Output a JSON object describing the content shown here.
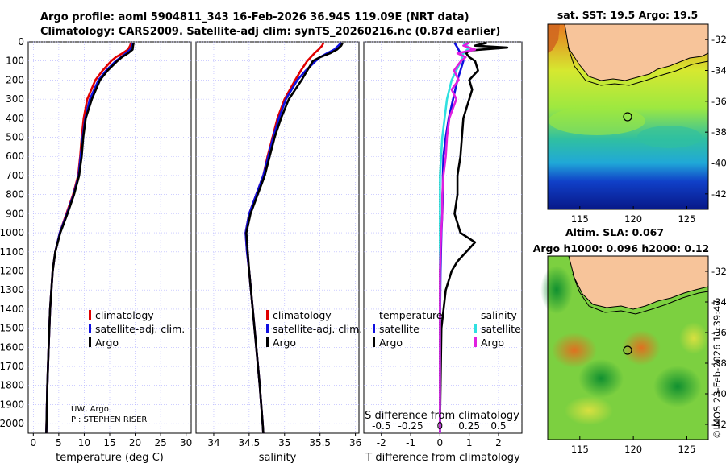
{
  "header": {
    "line1": "Argo profile: aoml 5904811_343 16-Feb-2026 36.94S 119.09E (NRT data)",
    "line2": "Climatology: CARS2009. Satellite-adj clim: synTS_20260216.nc (0.87d earlier)"
  },
  "colors": {
    "climatology": "#e00000",
    "satellite_adj": "#1010e0",
    "argo": "#000000",
    "sat_salinity": "#30e0e0",
    "argo_salinity": "#e020e0",
    "land": "#f7c49a",
    "grid": "#b0b0ff"
  },
  "depth_axis": {
    "ticks": [
      0,
      100,
      200,
      300,
      400,
      500,
      600,
      700,
      800,
      900,
      1000,
      1100,
      1200,
      1300,
      1400,
      1500,
      1600,
      1700,
      1800,
      1900,
      2000
    ],
    "range": [
      0,
      2050
    ]
  },
  "chart_data": [
    {
      "type": "line",
      "name": "temperature-profile",
      "xlabel": "temperature (deg C)",
      "ylabel": "depth",
      "xlim": [
        -1,
        31
      ],
      "ylim": [
        2050,
        0
      ],
      "xticks": [
        0,
        5,
        10,
        15,
        20,
        25,
        30
      ],
      "legend": [
        "climatology",
        "satellite-adj. clim.",
        "Argo"
      ],
      "annotation": [
        "UW, Argo",
        "PI: STEPHEN RISER"
      ],
      "series": [
        {
          "name": "climatology",
          "depth": [
            5,
            20,
            40,
            60,
            80,
            100,
            150,
            200,
            300,
            400,
            500,
            600,
            700,
            800,
            900,
            1000,
            1100,
            1200,
            1400,
            1600,
            1800,
            2000,
            2050
          ],
          "values": [
            19.2,
            19.0,
            18.6,
            17.5,
            16.2,
            15.3,
            13.6,
            12.2,
            10.6,
            9.9,
            9.5,
            9.2,
            8.8,
            7.8,
            6.5,
            5.2,
            4.3,
            3.8,
            3.3,
            3.0,
            2.75,
            2.6,
            2.55
          ]
        },
        {
          "name": "satellite-adj. clim.",
          "depth": [
            5,
            20,
            40,
            60,
            80,
            100,
            150,
            200,
            300,
            400,
            500,
            600,
            700,
            800,
            900,
            1000,
            1100,
            1200,
            1400,
            1600,
            1800,
            2000,
            2050
          ],
          "values": [
            19.6,
            19.4,
            19.0,
            18.2,
            17.2,
            16.2,
            14.3,
            12.8,
            11.1,
            10.2,
            9.7,
            9.3,
            8.9,
            7.9,
            6.6,
            5.2,
            4.3,
            3.8,
            3.3,
            3.0,
            2.75,
            2.6,
            2.55
          ]
        },
        {
          "name": "Argo",
          "depth": [
            5,
            20,
            40,
            60,
            80,
            100,
            150,
            200,
            300,
            400,
            500,
            600,
            700,
            800,
            900,
            1000,
            1100,
            1200,
            1400,
            1600,
            1800,
            2000,
            2050
          ],
          "values": [
            19.7,
            19.6,
            19.5,
            18.6,
            17.4,
            16.5,
            14.6,
            13.1,
            11.5,
            10.3,
            9.8,
            9.5,
            9.0,
            8.0,
            6.7,
            5.3,
            4.3,
            3.8,
            3.3,
            3.0,
            2.75,
            2.6,
            2.55
          ]
        }
      ]
    },
    {
      "type": "line",
      "name": "salinity-profile",
      "xlabel": "salinity",
      "ylabel": "depth",
      "xlim": [
        33.75,
        36.05
      ],
      "ylim": [
        2050,
        0
      ],
      "xticks": [
        34,
        34.5,
        35,
        35.5,
        36
      ],
      "legend": [
        "climatology",
        "satellite-adj. clim.",
        "Argo"
      ],
      "series": [
        {
          "name": "climatology",
          "depth": [
            5,
            20,
            40,
            60,
            80,
            100,
            150,
            200,
            300,
            400,
            500,
            600,
            700,
            800,
            900,
            1000,
            1100,
            1200,
            1400,
            1600,
            1800,
            2000,
            2050
          ],
          "values": [
            35.55,
            35.53,
            35.48,
            35.42,
            35.37,
            35.32,
            35.23,
            35.15,
            35.0,
            34.9,
            34.83,
            34.76,
            34.7,
            34.6,
            34.5,
            34.45,
            34.47,
            34.5,
            34.55,
            34.6,
            34.65,
            34.69,
            34.7
          ]
        },
        {
          "name": "satellite-adj. clim.",
          "depth": [
            5,
            20,
            40,
            60,
            80,
            100,
            150,
            200,
            300,
            400,
            500,
            600,
            700,
            800,
            900,
            1000,
            1100,
            1200,
            1400,
            1600,
            1800,
            2000,
            2050
          ],
          "values": [
            35.8,
            35.76,
            35.7,
            35.6,
            35.5,
            35.44,
            35.3,
            35.18,
            35.02,
            34.92,
            34.84,
            34.77,
            34.7,
            34.6,
            34.5,
            34.45,
            34.47,
            34.5,
            34.55,
            34.6,
            34.65,
            34.69,
            34.7
          ]
        },
        {
          "name": "Argo",
          "depth": [
            5,
            20,
            40,
            60,
            80,
            100,
            150,
            200,
            300,
            400,
            500,
            600,
            700,
            800,
            900,
            1000,
            1100,
            1200,
            1400,
            1600,
            1800,
            2000,
            2050
          ],
          "values": [
            35.82,
            35.8,
            35.74,
            35.64,
            35.5,
            35.4,
            35.32,
            35.24,
            35.06,
            34.95,
            34.86,
            34.79,
            34.72,
            34.62,
            34.52,
            34.46,
            34.48,
            34.5,
            34.55,
            34.6,
            34.65,
            34.69,
            34.7
          ]
        }
      ]
    },
    {
      "type": "line",
      "name": "difference-profile",
      "xlabel": "T difference from climatology",
      "x2label": "S difference from climatology",
      "ylabel": "depth",
      "xlim": [
        -2.6,
        2.8
      ],
      "ylim": [
        2050,
        0
      ],
      "xticks": [
        -2,
        -1,
        0,
        1,
        2
      ],
      "x2ticks": [
        "-0.5",
        "-0.25",
        "0",
        "0.25",
        "0.5"
      ],
      "legend_left_title": "temperature",
      "legend_right_title": "salinity",
      "legend_left": [
        "satellite",
        "Argo"
      ],
      "legend_right": [
        "satellite",
        "Argo"
      ],
      "series": [
        {
          "name": "T satellite",
          "depth": [
            5,
            30,
            60,
            100,
            150,
            200,
            300,
            400,
            500,
            600,
            700,
            800,
            900,
            1000,
            1200,
            1500,
            2000,
            2050
          ],
          "values": [
            0.5,
            0.6,
            0.7,
            0.8,
            0.7,
            0.6,
            0.45,
            0.3,
            0.2,
            0.12,
            0.1,
            0.1,
            0.08,
            0.05,
            0.02,
            0.0,
            0.0,
            0.0
          ]
        },
        {
          "name": "T Argo",
          "depth": [
            5,
            20,
            30,
            45,
            60,
            80,
            100,
            150,
            200,
            250,
            300,
            350,
            400,
            500,
            600,
            700,
            800,
            900,
            1000,
            1050,
            1100,
            1150,
            1200,
            1300,
            1500,
            2000,
            2050
          ],
          "values": [
            1.6,
            1.2,
            2.3,
            1.0,
            0.9,
            1.0,
            1.2,
            1.3,
            1.0,
            1.1,
            1.0,
            0.9,
            0.8,
            0.75,
            0.7,
            0.6,
            0.6,
            0.5,
            0.7,
            1.2,
            0.9,
            0.6,
            0.4,
            0.2,
            0.05,
            0.0,
            0.0
          ]
        },
        {
          "name": "S satellite",
          "depth": [
            5,
            30,
            60,
            100,
            150,
            200,
            300,
            400,
            500,
            600,
            700,
            800,
            900,
            1000,
            1200,
            1500,
            2000,
            2050
          ],
          "values": [
            0.2,
            0.25,
            0.2,
            0.18,
            0.14,
            0.1,
            0.06,
            0.04,
            0.02,
            0.01,
            0.0,
            0.0,
            0.0,
            0.0,
            0.0,
            0.0,
            0.0,
            0.0
          ]
        },
        {
          "name": "S Argo",
          "depth": [
            5,
            20,
            40,
            60,
            80,
            100,
            150,
            200,
            250,
            300,
            400,
            500,
            600,
            700,
            800,
            900,
            1000,
            1200,
            1500,
            2000,
            2050
          ],
          "values": [
            0.25,
            0.2,
            0.3,
            0.15,
            0.22,
            0.18,
            0.12,
            0.16,
            0.1,
            0.14,
            0.08,
            0.06,
            0.05,
            0.03,
            0.02,
            0.02,
            0.01,
            0.0,
            0.0,
            0.0,
            0.0
          ]
        }
      ]
    }
  ],
  "maps": {
    "sst": {
      "title": "sat. SST: 19.5 Argo: 19.5",
      "xticks": [
        "115",
        "120",
        "125"
      ],
      "yticks": [
        "-32",
        "-34",
        "-36",
        "-38",
        "-40",
        "-42"
      ]
    },
    "sla": {
      "title1": "Altim. SLA: 0.067",
      "title2": "Argo h1000: 0.096 h2000: 0.12",
      "xticks": [
        "115",
        "120",
        "125"
      ],
      "yticks": [
        "-32",
        "-34",
        "-36",
        "-38",
        "-40",
        "-42"
      ]
    },
    "credit": "©IMOS 23-Feb-2026 11:39:47"
  }
}
